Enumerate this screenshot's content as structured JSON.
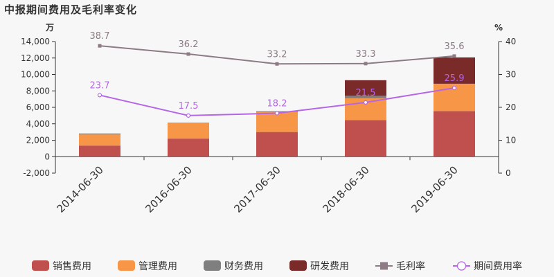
{
  "title": "中报期间费用及毛利率变化",
  "chart_data": {
    "type": "bar",
    "stacked": true,
    "categories": [
      "2014-06-30",
      "2016-06-30",
      "2017-06-30",
      "2018-06-30",
      "2019-06-30"
    ],
    "y_left": {
      "unit": "万",
      "min": -2000,
      "max": 14000,
      "ticks": [
        -2000,
        0,
        2000,
        4000,
        6000,
        8000,
        10000,
        12000,
        14000
      ]
    },
    "y_right": {
      "unit": "%",
      "min": 0,
      "max": 40,
      "ticks": [
        0,
        10,
        20,
        30,
        40
      ]
    },
    "bar_series": [
      {
        "name": "销售费用",
        "color": "#c0504d",
        "values": [
          1350,
          2200,
          3000,
          4450,
          5550
        ]
      },
      {
        "name": "管理费用",
        "color": "#f79646",
        "values": [
          1350,
          1900,
          2450,
          2650,
          3300
        ]
      },
      {
        "name": "财务费用",
        "color": "#7f7f7f",
        "values": [
          120,
          40,
          80,
          300,
          20
        ]
      },
      {
        "name": "研发费用",
        "color": "#7b2a2a",
        "values": [
          0,
          0,
          0,
          1900,
          3200
        ]
      }
    ],
    "line_series": [
      {
        "name": "毛利率",
        "color": "#8c7b85",
        "marker": "square",
        "values": [
          38.7,
          36.2,
          33.2,
          33.3,
          35.6
        ],
        "labels": [
          "38.7",
          "36.2",
          "33.2",
          "33.3",
          "35.6"
        ]
      },
      {
        "name": "期间费用率",
        "color": "#b565e6",
        "marker": "circle",
        "values": [
          23.7,
          17.5,
          18.2,
          21.5,
          25.9
        ],
        "labels": [
          "23.7",
          "17.5",
          "18.2",
          "21.5",
          "25.9"
        ]
      }
    ],
    "grid": false,
    "legend_position": "bottom"
  }
}
